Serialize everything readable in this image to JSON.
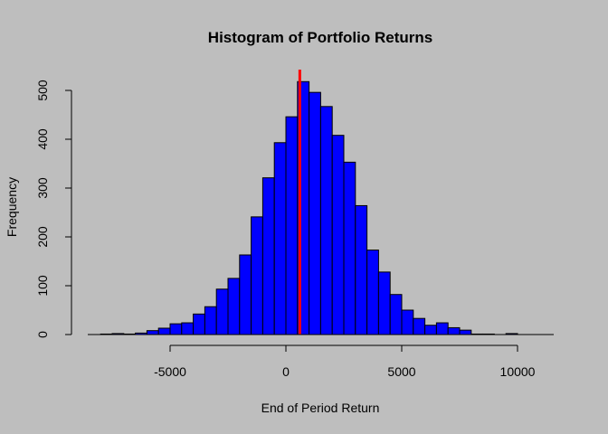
{
  "chart_data": {
    "type": "bar",
    "title": "Histogram of Portfolio Returns",
    "xlabel": "End of Period Return",
    "ylabel": "Frequency",
    "xlim": [
      -8500,
      11500
    ],
    "ylim": [
      0,
      520
    ],
    "x_ticks": [
      -5000,
      0,
      5000,
      10000
    ],
    "x_tick_labels": [
      "-5000",
      "0",
      "5000",
      "10000"
    ],
    "y_ticks": [
      0,
      100,
      200,
      300,
      400,
      500
    ],
    "y_tick_labels": [
      "0",
      "100",
      "200",
      "300",
      "400",
      "500"
    ],
    "bin_width": 500,
    "bins_start": -8000,
    "values": [
      1,
      2,
      1,
      3,
      8,
      13,
      22,
      24,
      42,
      57,
      93,
      115,
      163,
      241,
      321,
      393,
      446,
      518,
      496,
      467,
      408,
      353,
      264,
      173,
      128,
      82,
      50,
      33,
      19,
      24,
      14,
      9,
      1,
      1,
      0,
      2,
      0,
      0,
      0,
      0
    ],
    "bar_color": "#0000ff",
    "vline": {
      "x": 600,
      "color": "#ff0000"
    },
    "background": "#bebebe"
  }
}
